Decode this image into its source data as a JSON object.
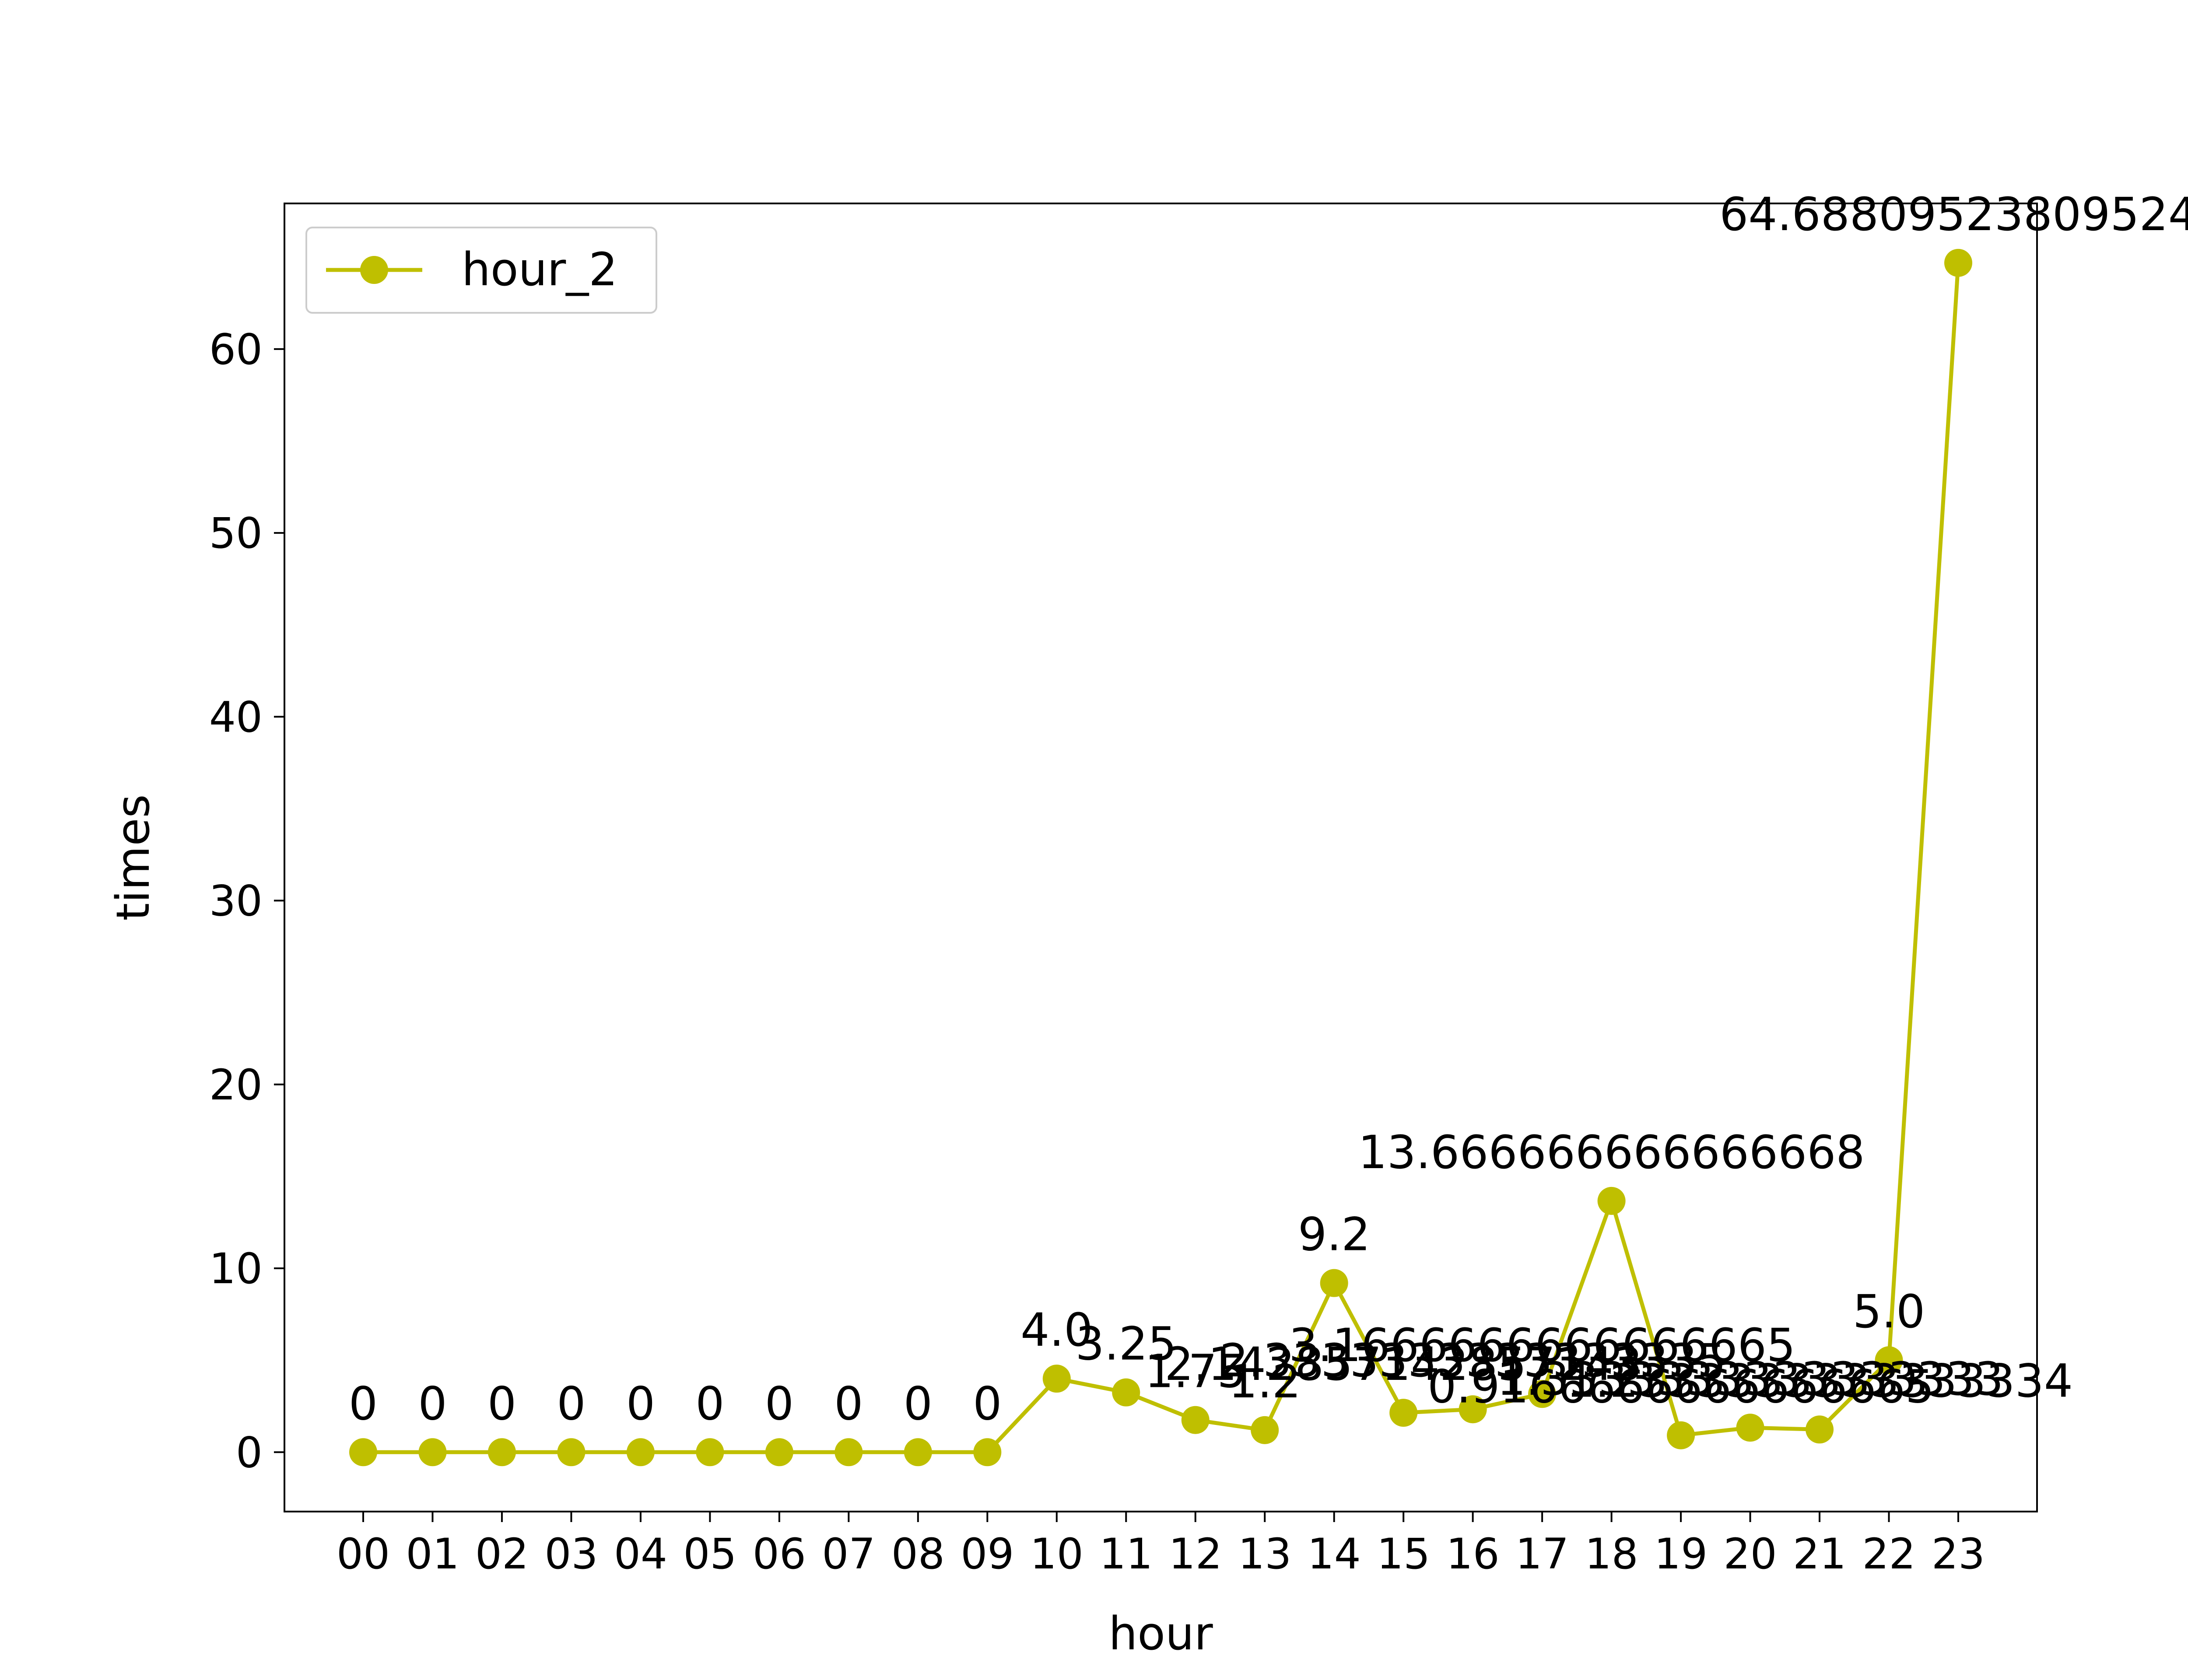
{
  "chart_data": {
    "type": "line",
    "title": "",
    "xlabel": "hour",
    "ylabel": "times",
    "categories": [
      "00",
      "01",
      "02",
      "03",
      "04",
      "05",
      "06",
      "07",
      "08",
      "09",
      "10",
      "11",
      "12",
      "13",
      "14",
      "15",
      "16",
      "17",
      "18",
      "19",
      "20",
      "21",
      "22",
      "23"
    ],
    "yticks": [
      0,
      10,
      20,
      30,
      40,
      50,
      60
    ],
    "ylim": [
      -3.23,
      67.92
    ],
    "grid": false,
    "legend_position": "upper-left",
    "series": [
      {
        "name": "hour_2",
        "color": "#bfbf00",
        "marker": "circle",
        "values": [
          0,
          0,
          0,
          0,
          0,
          0,
          0,
          0,
          0,
          0,
          4.0,
          3.25,
          1.75,
          1.2,
          9.2,
          2.142857142857143,
          2.3333333333333335,
          3.1666666666666665,
          13.666666666666668,
          0.9166666666666665,
          1.3333333333333333,
          1.2333333333333334,
          5.0,
          64.68809523809524
        ],
        "labels": [
          "0",
          "0",
          "0",
          "0",
          "0",
          "0",
          "0",
          "0",
          "0",
          "0",
          "4.0",
          "3.25",
          "1.75",
          "1.2",
          "9.2",
          "2.142857142857143",
          "2.3333333333333335",
          "3.1666666666666665",
          "13.666666666666668",
          "0.9166666666666665",
          "1.3333333333333333",
          "1.2333333333333334",
          "5.0",
          "64.68809523809524"
        ]
      }
    ]
  }
}
